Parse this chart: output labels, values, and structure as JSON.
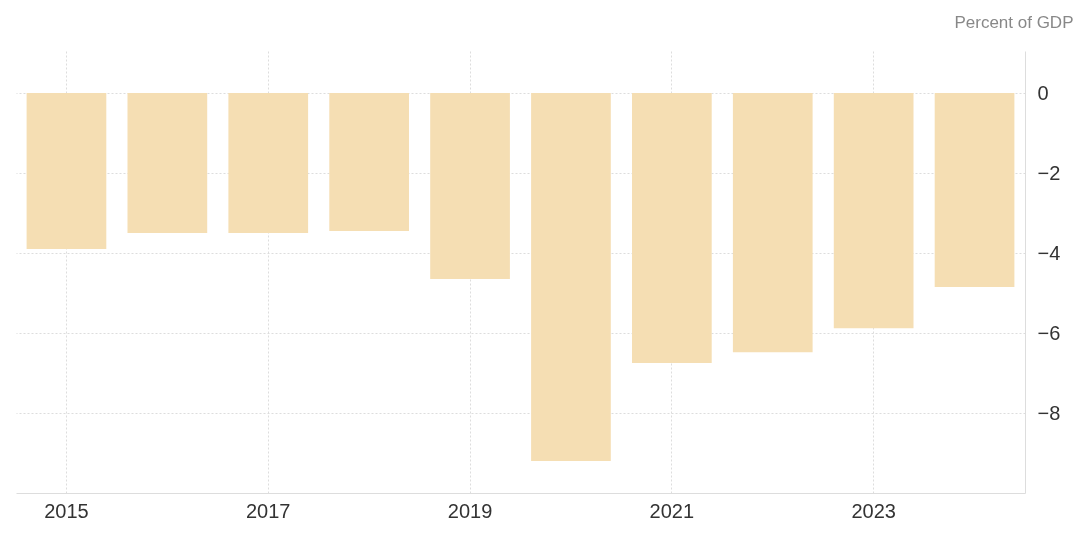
{
  "chart_data": {
    "type": "bar",
    "ylabel": "Percent of GDP",
    "categories": [
      "2015",
      null,
      "2017",
      null,
      "2019",
      null,
      "2021",
      null,
      "2023",
      null
    ],
    "values": [
      -3.9,
      -3.5,
      -3.5,
      -3.45,
      -4.65,
      -9.2,
      -6.75,
      -6.48,
      -5.88,
      -4.85
    ],
    "color": "#f5deb3",
    "ylim": [
      -10,
      1.05
    ],
    "yticks": [
      0,
      -2,
      -4,
      -6,
      -8
    ],
    "grid": true,
    "legend": false
  }
}
